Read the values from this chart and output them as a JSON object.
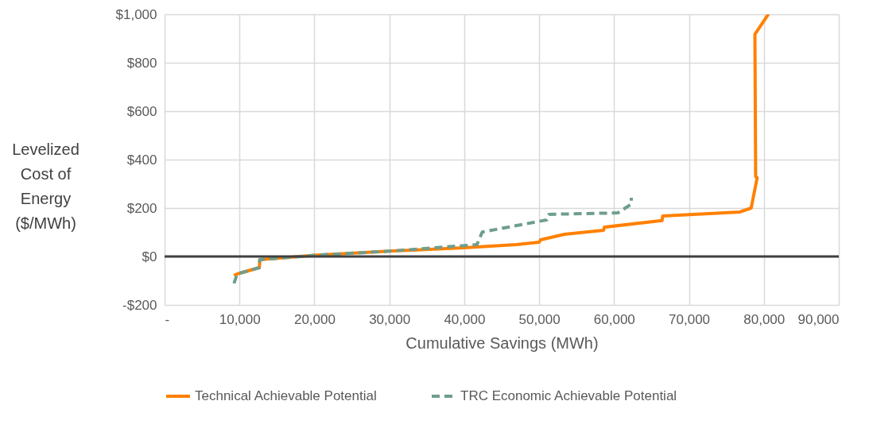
{
  "chart_data": {
    "type": "line",
    "xlabel": "Cumulative Savings (MWh)",
    "ylabel": "Levelized Cost of Energy ($/MWh)",
    "xlim": [
      0,
      90000
    ],
    "xticks": [
      {
        "value": 0,
        "label": "-"
      },
      {
        "value": 10000,
        "label": "10,000"
      },
      {
        "value": 20000,
        "label": "20,000"
      },
      {
        "value": 30000,
        "label": "30,000"
      },
      {
        "value": 40000,
        "label": "40,000"
      },
      {
        "value": 50000,
        "label": "50,000"
      },
      {
        "value": 60000,
        "label": "60,000"
      },
      {
        "value": 70000,
        "label": "70,000"
      },
      {
        "value": 80000,
        "label": "80,000"
      },
      {
        "value": 90000,
        "label": "90,000"
      }
    ],
    "ylim": [
      -200,
      1000
    ],
    "yticks": [
      {
        "value": -200,
        "label": "-$200"
      },
      {
        "value": 0,
        "label": "$0"
      },
      {
        "value": 200,
        "label": "$200"
      },
      {
        "value": 400,
        "label": "$400"
      },
      {
        "value": 600,
        "label": "$600"
      },
      {
        "value": 800,
        "label": "$800"
      },
      {
        "value": 1000,
        "label": "$1,000"
      }
    ],
    "grid": true,
    "legend": "bottom",
    "marker": "none",
    "ref_lines": [
      {
        "axis": "y",
        "value": 0,
        "color": "#404040"
      }
    ],
    "series": [
      {
        "name": "Technical Achievable Potential",
        "color": "#ff8000",
        "line_style": "solid",
        "x": [
          9260,
          9700,
          12660,
          12700,
          20000,
          30000,
          40000,
          47000,
          50000,
          50200,
          53400,
          58600,
          58700,
          66400,
          66500,
          76800,
          78300,
          79100,
          78900,
          78800,
          80600
        ],
        "values": [
          -79,
          -72,
          -46,
          -13,
          5,
          22,
          36,
          49,
          59,
          69,
          92,
          108,
          121,
          148,
          167,
          184,
          200,
          325,
          330,
          918,
          1000
        ]
      },
      {
        "name": "TRC Economic Achievable Potential",
        "color": "#6f9e8c",
        "line_style": "dashed",
        "x": [
          9260,
          9700,
          12660,
          12700,
          20000,
          30000,
          41700,
          42400,
          51000,
          51300,
          60500,
          62300,
          62300
        ],
        "values": [
          -111,
          -72,
          -46,
          -13,
          5,
          22,
          49,
          101,
          151,
          174,
          180,
          216,
          243
        ]
      }
    ]
  }
}
